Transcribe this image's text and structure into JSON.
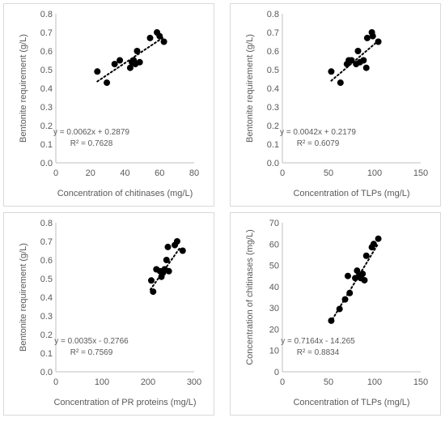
{
  "chart_data": [
    {
      "type": "scatter",
      "xlabel": "Concentration of chitinases (mg/L)",
      "ylabel": "Bentonite requirement (g/L)",
      "xlim": [
        0,
        80
      ],
      "ylim": [
        0,
        0.8
      ],
      "xticks": [
        0,
        20,
        40,
        60,
        80
      ],
      "yticks": [
        0,
        0.1,
        0.2,
        0.3,
        0.4,
        0.5,
        0.6,
        0.7,
        0.8
      ],
      "grid": false,
      "points": [
        {
          "x": 24,
          "y": 0.49
        },
        {
          "x": 29.5,
          "y": 0.43
        },
        {
          "x": 34,
          "y": 0.53
        },
        {
          "x": 37,
          "y": 0.55
        },
        {
          "x": 43,
          "y": 0.51
        },
        {
          "x": 44,
          "y": 0.54
        },
        {
          "x": 45,
          "y": 0.55
        },
        {
          "x": 46,
          "y": 0.53
        },
        {
          "x": 47,
          "y": 0.6
        },
        {
          "x": 48.5,
          "y": 0.54
        },
        {
          "x": 54.5,
          "y": 0.67
        },
        {
          "x": 58.5,
          "y": 0.7
        },
        {
          "x": 60,
          "y": 0.68
        },
        {
          "x": 62.5,
          "y": 0.65
        }
      ],
      "trendline": {
        "slope": 0.0062,
        "intercept": 0.2879,
        "x_range": [
          24,
          62.5
        ]
      },
      "equation": "y = 0.0062x + 0.2879",
      "r2": "R² = 0.7628"
    },
    {
      "type": "scatter",
      "xlabel": "Concentration of TLPs (mg/L)",
      "ylabel": "Bentonite requirement (g/L)",
      "xlim": [
        0,
        150
      ],
      "ylim": [
        0,
        0.8
      ],
      "xticks": [
        0,
        50,
        100,
        150
      ],
      "yticks": [
        0,
        0.1,
        0.2,
        0.3,
        0.4,
        0.5,
        0.6,
        0.7,
        0.8
      ],
      "grid": false,
      "points": [
        {
          "x": 53,
          "y": 0.49
        },
        {
          "x": 63,
          "y": 0.43
        },
        {
          "x": 70,
          "y": 0.53
        },
        {
          "x": 72,
          "y": 0.55
        },
        {
          "x": 75,
          "y": 0.55
        },
        {
          "x": 80,
          "y": 0.53
        },
        {
          "x": 82,
          "y": 0.6
        },
        {
          "x": 84,
          "y": 0.54
        },
        {
          "x": 88,
          "y": 0.55
        },
        {
          "x": 91,
          "y": 0.51
        },
        {
          "x": 92,
          "y": 0.67
        },
        {
          "x": 97,
          "y": 0.7
        },
        {
          "x": 98,
          "y": 0.68
        },
        {
          "x": 104,
          "y": 0.65
        }
      ],
      "trendline": {
        "slope": 0.0042,
        "intercept": 0.2179,
        "x_range": [
          53,
          104
        ]
      },
      "equation": "y = 0.0042x + 0.2179",
      "r2": "R² = 0.6079"
    },
    {
      "type": "scatter",
      "xlabel": "Concentration of PR proteins (mg/L)",
      "ylabel": "Bentonite requirement (g/L)",
      "xlim": [
        0,
        300
      ],
      "ylim": [
        0,
        0.8
      ],
      "xticks": [
        0,
        100,
        200,
        300
      ],
      "yticks": [
        0,
        0.1,
        0.2,
        0.3,
        0.4,
        0.5,
        0.6,
        0.7,
        0.8
      ],
      "grid": false,
      "points": [
        {
          "x": 207,
          "y": 0.49
        },
        {
          "x": 211,
          "y": 0.43
        },
        {
          "x": 218,
          "y": 0.55
        },
        {
          "x": 226,
          "y": 0.54
        },
        {
          "x": 229,
          "y": 0.51
        },
        {
          "x": 232,
          "y": 0.53
        },
        {
          "x": 236,
          "y": 0.55
        },
        {
          "x": 240,
          "y": 0.6
        },
        {
          "x": 243,
          "y": 0.67
        },
        {
          "x": 245,
          "y": 0.54
        },
        {
          "x": 258,
          "y": 0.68
        },
        {
          "x": 263,
          "y": 0.7
        },
        {
          "x": 275,
          "y": 0.65
        }
      ],
      "trendline": {
        "slope": 0.0035,
        "intercept": -0.2766,
        "x_range": [
          205,
          270
        ]
      },
      "equation": "y = 0.0035x - 0.2766",
      "r2": "R² = 0.7569"
    },
    {
      "type": "scatter",
      "xlabel": "Concentration of TLPs (mg/L)",
      "ylabel": "Concentration of chitinases (mg/L)",
      "xlim": [
        0,
        150
      ],
      "ylim": [
        0,
        70
      ],
      "xticks": [
        0,
        50,
        100,
        150
      ],
      "yticks": [
        0,
        10,
        20,
        30,
        40,
        50,
        60,
        70
      ],
      "grid": false,
      "points": [
        {
          "x": 53,
          "y": 24
        },
        {
          "x": 62,
          "y": 29.5
        },
        {
          "x": 68,
          "y": 34
        },
        {
          "x": 71,
          "y": 45
        },
        {
          "x": 73,
          "y": 37
        },
        {
          "x": 79,
          "y": 44
        },
        {
          "x": 81,
          "y": 47.5
        },
        {
          "x": 83,
          "y": 45
        },
        {
          "x": 85,
          "y": 44
        },
        {
          "x": 87,
          "y": 46
        },
        {
          "x": 89,
          "y": 43
        },
        {
          "x": 91,
          "y": 54.5
        },
        {
          "x": 97,
          "y": 58.5
        },
        {
          "x": 99,
          "y": 60
        },
        {
          "x": 104,
          "y": 62.5
        }
      ],
      "trendline": {
        "slope": 0.7164,
        "intercept": -14.265,
        "x_range": [
          52,
          104
        ]
      },
      "equation": "y = 0.7164x - 14.265",
      "r2": "R² = 0.8834"
    }
  ]
}
